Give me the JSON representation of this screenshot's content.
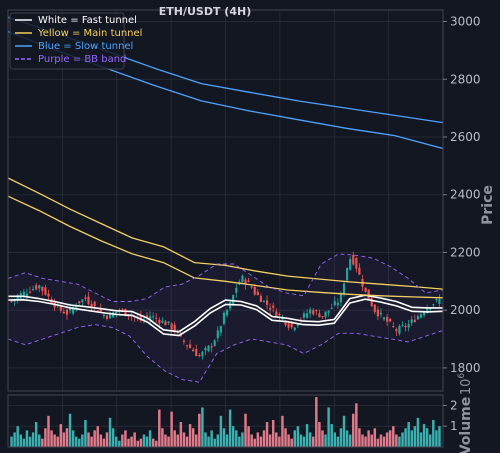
{
  "chart_data": {
    "type": "line",
    "title": "ETH/USDT (4H)",
    "legend_placement": "top-left",
    "legend": [
      {
        "label": "White = Fast tunnel",
        "color": "#ffffff",
        "dashed": false
      },
      {
        "label": "Yellow = Main tunnel",
        "color": "#f5d060",
        "dashed": false
      },
      {
        "label": "Blue = Slow tunnel",
        "color": "#4da3ff",
        "dashed": false
      },
      {
        "label": "Purple = BB band",
        "color": "#9966ff",
        "dashed": true
      }
    ],
    "colors": {
      "up": "#26a69a",
      "down": "#ef5350",
      "volume_up": "#3bb0b0",
      "volume_down": "#e07a8a",
      "background": "#131722",
      "grid": "#2a2e39"
    },
    "price_panel": {
      "ylabel": "Price",
      "ylim": [
        1720,
        3040
      ],
      "yticks": [
        1800,
        2000,
        2200,
        2400,
        2600,
        2800,
        3000
      ],
      "grid": true,
      "candles": {
        "count": 140,
        "close_approx": [
          2030,
          2040,
          2050,
          2055,
          2060,
          2065,
          2070,
          2075,
          2080,
          2085,
          2070,
          2060,
          2045,
          2030,
          2020,
          2010,
          2000,
          1995,
          1990,
          2000,
          2010,
          2020,
          2030,
          2035,
          2040,
          2030,
          2020,
          2010,
          2000,
          1990,
          1985,
          1980,
          1985,
          1990,
          1995,
          2000,
          1995,
          1990,
          1985,
          1980,
          1975,
          1970,
          1965,
          1970,
          1975,
          1980,
          1975,
          1970,
          1965,
          1960,
          1955,
          1950,
          1940,
          1930,
          1920,
          1900,
          1890,
          1880,
          1870,
          1860,
          1850,
          1840,
          1850,
          1860,
          1870,
          1880,
          1900,
          1920,
          1950,
          1980,
          2000,
          2020,
          2050,
          2080,
          2100,
          2110,
          2100,
          2090,
          2080,
          2060,
          2050,
          2040,
          2030,
          2020,
          2010,
          2000,
          1990,
          1980,
          1970,
          1960,
          1950,
          1940,
          1950,
          1960,
          1970,
          1980,
          1990,
          2000,
          1995,
          1990,
          1985,
          1980,
          1990,
          2000,
          2010,
          2020,
          2030,
          2050,
          2100,
          2150,
          2180,
          2170,
          2150,
          2120,
          2090,
          2060,
          2040,
          2020,
          2000,
          1990,
          1980,
          1970,
          1960,
          1950,
          1940,
          1930,
          1935,
          1940,
          1945,
          1950,
          1960,
          1970,
          1980,
          1990,
          2000,
          2010,
          2020,
          2025,
          2030,
          2035
        ]
      },
      "series": [
        {
          "name": "Fast tunnel upper",
          "color": "#ffffff",
          "y": [
            2048,
            2048,
            2040,
            2030,
            2018,
            2012,
            2005,
            1998,
            1995,
            1972,
            1932,
            1925,
            1960,
            2005,
            2035,
            2030,
            2015,
            1978,
            1972,
            1962,
            1960,
            1968,
            2040,
            2052,
            2042,
            2030,
            2010,
            2008,
            2008
          ]
        },
        {
          "name": "Fast tunnel lower",
          "color": "#ffffff",
          "y": [
            2035,
            2036,
            2030,
            2020,
            2008,
            2000,
            1992,
            1985,
            1982,
            1958,
            1918,
            1912,
            1945,
            1990,
            2020,
            2018,
            2002,
            1965,
            1960,
            1950,
            1948,
            1955,
            2025,
            2038,
            2028,
            2015,
            1996,
            1994,
            1996
          ]
        },
        {
          "name": "Main tunnel upper",
          "color": "#f5d060",
          "y": [
            2458,
            2405,
            2350,
            2300,
            2250,
            2220,
            2165,
            2155,
            2135,
            2118,
            2108,
            2098,
            2090,
            2082,
            2073
          ]
        },
        {
          "name": "Main tunnel lower",
          "color": "#f5d060",
          "y": [
            2395,
            2345,
            2290,
            2240,
            2195,
            2165,
            2112,
            2100,
            2085,
            2070,
            2062,
            2055,
            2050,
            2046,
            2043
          ]
        },
        {
          "name": "Slow tunnel upper",
          "color": "#4da3ff",
          "y": [
            3015,
            2960,
            2900,
            2840,
            2785,
            2755,
            2725,
            2700,
            2675,
            2650
          ]
        },
        {
          "name": "Slow tunnel lower",
          "color": "#4da3ff",
          "y": [
            2965,
            2900,
            2840,
            2780,
            2725,
            2690,
            2660,
            2630,
            2605,
            2560
          ]
        },
        {
          "name": "BB upper",
          "color": "#9966ff",
          "y": [
            2110,
            2130,
            2110,
            2100,
            2090,
            2060,
            2030,
            2030,
            2040,
            2080,
            2090,
            2120,
            2160,
            2160,
            2120,
            2080,
            2060,
            2050,
            2160,
            2195,
            2190,
            2180,
            2150,
            2110,
            2060,
            2070
          ]
        },
        {
          "name": "BB lower",
          "color": "#9966ff",
          "y": [
            1900,
            1880,
            1900,
            1920,
            1940,
            1950,
            1940,
            1910,
            1840,
            1790,
            1760,
            1750,
            1850,
            1880,
            1900,
            1890,
            1880,
            1850,
            1880,
            1920,
            1920,
            1910,
            1900,
            1890,
            1910,
            1930
          ]
        }
      ]
    },
    "volume_panel": {
      "ylabel": "Volume",
      "unit_label": "10",
      "unit_exponent": "6",
      "ylim": [
        0,
        2.5
      ],
      "yticks": [
        1,
        2
      ],
      "values_approx": [
        0.5,
        0.7,
        1.0,
        0.6,
        0.4,
        0.8,
        0.5,
        0.7,
        1.2,
        0.6,
        0.4,
        0.9,
        1.5,
        0.8,
        0.6,
        0.5,
        1.1,
        0.7,
        0.9,
        1.6,
        0.8,
        0.5,
        0.4,
        0.6,
        1.3,
        0.7,
        0.5,
        0.8,
        1.0,
        0.6,
        0.4,
        0.7,
        1.4,
        0.9,
        0.5,
        0.3,
        0.6,
        0.8,
        0.4,
        0.5,
        0.7,
        0.3,
        0.4,
        0.6,
        0.5,
        0.8,
        0.4,
        0.3,
        1.8,
        0.9,
        0.6,
        0.5,
        1.7,
        0.8,
        0.6,
        1.2,
        0.7,
        0.5,
        1.1,
        0.9,
        0.6,
        1.6,
        1.9,
        0.7,
        0.5,
        0.8,
        0.4,
        0.6,
        1.5,
        0.9,
        0.6,
        1.8,
        1.0,
        0.8,
        0.5,
        0.7,
        1.6,
        1.0,
        0.6,
        0.4,
        0.7,
        0.5,
        0.8,
        1.2,
        0.6,
        1.3,
        0.7,
        0.5,
        1.5,
        0.9,
        0.6,
        0.4,
        0.8,
        1.0,
        0.6,
        0.5,
        1.1,
        0.7,
        0.5,
        2.4,
        1.2,
        0.8,
        0.6,
        1.9,
        1.1,
        0.7,
        0.5,
        0.9,
        1.5,
        0.8,
        0.6,
        1.6,
        2.1,
        0.9,
        0.6,
        0.5,
        0.8,
        0.6,
        0.9,
        0.4,
        0.6,
        0.5,
        0.7,
        0.8,
        1.0,
        0.6,
        0.5,
        0.7,
        0.9,
        1.2,
        0.8,
        1.0,
        1.4,
        0.7,
        1.1,
        0.9,
        0.6,
        1.3,
        0.8,
        1.0
      ]
    }
  }
}
